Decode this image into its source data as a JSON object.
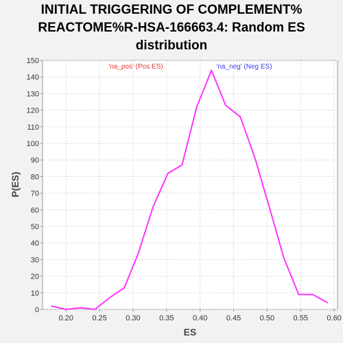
{
  "chart_data": {
    "type": "line",
    "title_lines": [
      "INITIAL TRIGGERING OF COMPLEMENT%",
      "REACTOME%R-HSA-166663.4: Random ES",
      "distribution"
    ],
    "xlabel": "ES",
    "ylabel": "P(ES)",
    "xlim": [
      0.165,
      0.605
    ],
    "ylim": [
      0,
      150
    ],
    "x_ticks": [
      "0.20",
      "0.25",
      "0.30",
      "0.35",
      "0.40",
      "0.45",
      "0.50",
      "0.55",
      "0.60"
    ],
    "y_ticks": [
      "0",
      "10",
      "20",
      "30",
      "40",
      "50",
      "60",
      "70",
      "80",
      "90",
      "100",
      "110",
      "120",
      "130",
      "140",
      "150"
    ],
    "grid": true,
    "annotations": [
      {
        "text": "'na_pos' (Pos ES)",
        "color": "#e8342c"
      },
      {
        "text": "'na_neg' (Neg ES)",
        "color": "#3c3cf0"
      }
    ],
    "series": [
      {
        "color": "#ff33ff",
        "x": [
          0.178,
          0.2,
          0.222,
          0.243,
          0.265,
          0.287,
          0.308,
          0.33,
          0.352,
          0.373,
          0.395,
          0.417,
          0.438,
          0.46,
          0.482,
          0.503,
          0.525,
          0.547,
          0.568,
          0.59
        ],
        "y": [
          2,
          0,
          1,
          0,
          7,
          13,
          34,
          62,
          82,
          87,
          122,
          144,
          123,
          116,
          91,
          62,
          31,
          9,
          9,
          4
        ]
      }
    ]
  }
}
